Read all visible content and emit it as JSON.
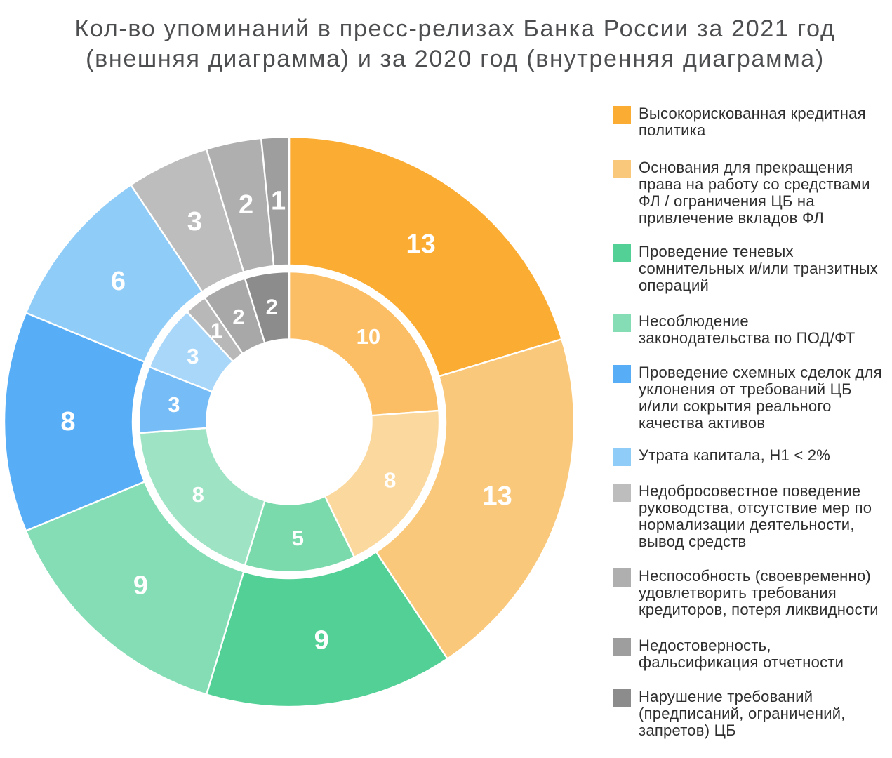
{
  "title": "Кол-во упоминаний в пресс-релизах Банка России за 2021 год\n(внешняя диаграмма) и за 2020 год (внутренняя диаграмма)",
  "chart_data": {
    "type": "pie",
    "subtype": "nested-donut",
    "title": "Кол-во упоминаний в пресс-релизах Банка России за 2021 год (внешняя диаграмма) и за 2020 год (внутренняя диаграмма)",
    "legend_position": "right",
    "categories": [
      "Высокорискованная кредитная политика",
      "Основания для прекращения права на работу со средствами ФЛ / ограничения ЦБ на привлечение вкладов ФЛ",
      "Проведение теневых сомнительных и/или транзитных операций",
      "Несоблюдение законодательства по ПОД/ФТ",
      "Проведение схемных сделок для уклонения от требований ЦБ и/или сокрытия реального качества активов",
      "Утрата капитала, Н1 < 2%",
      "Недобросовестное поведение руководства, отсутствие мер по нормализации деятельности, вывод средств",
      "Неспособность (своевременно) удовлетворить требования кредиторов, потеря ликвидности",
      "Недостоверность, фальсификация отчетности",
      "Нарушение требований (предписаний, ограничений, запретов) ЦБ"
    ],
    "series": [
      {
        "name": "2021 (внешняя диаграмма)",
        "ring": "outer",
        "values": [
          13,
          13,
          9,
          9,
          8,
          6,
          3,
          2,
          1,
          0
        ]
      },
      {
        "name": "2020 (внутренняя диаграмма)",
        "ring": "inner",
        "values": [
          10,
          8,
          5,
          8,
          3,
          3,
          0,
          1,
          2,
          2
        ]
      }
    ],
    "colors_outer": [
      "#FBAC33",
      "#FAC87B",
      "#52D096",
      "#85DDB5",
      "#58AEF6",
      "#8FCCF8",
      "#BDBDBD",
      "#AFAFAF",
      "#9E9E9E",
      "#8C8C8C"
    ],
    "colors_inner": [
      "#FBBE64",
      "#FBD89E",
      "#7BDAAC",
      "#9EE3C4",
      "#76BDF7",
      "#A9D7FA",
      "#C9C9C9",
      "#B8B8B8",
      "#A8A8A8",
      "#8C8C8C"
    ]
  },
  "legend": {
    "items": [
      {
        "label": "Высокорискованная кредитная\nполитика",
        "color": "#FBAC33"
      },
      {
        "label": "Основания для прекращения\nправа на работу со средствами\nФЛ / ограничения ЦБ на\nпривлечение вкладов ФЛ",
        "color": "#FAC87B"
      },
      {
        "label": "Проведение теневых\nсомнительных и/или транзитных\nопераций",
        "color": "#52D096"
      },
      {
        "label": "Несоблюдение\nзаконодательства по ПОД/ФТ",
        "color": "#85DDB5"
      },
      {
        "label": "Проведение схемных сделок для\nуклонения от требований ЦБ\nи/или сокрытия реального\nкачества активов",
        "color": "#58AEF6"
      },
      {
        "label": "Утрата капитала, Н1 < 2%",
        "color": "#8FCCF8"
      },
      {
        "label": "Недобросовестное поведение\nруководства, отсутствие мер по\nнормализации деятельности,\nвывод средств",
        "color": "#BDBDBD"
      },
      {
        "label": "Неспособность (своевременно)\nудовлетворить требования\nкредиторов, потеря ликвидности",
        "color": "#AFAFAF"
      },
      {
        "label": "Недостоверность,\nфальсификация отчетности",
        "color": "#9E9E9E"
      },
      {
        "label": "Нарушение требований\n(предписаний, ограничений,\nзапретов) ЦБ",
        "color": "#8C8C8C"
      }
    ]
  }
}
